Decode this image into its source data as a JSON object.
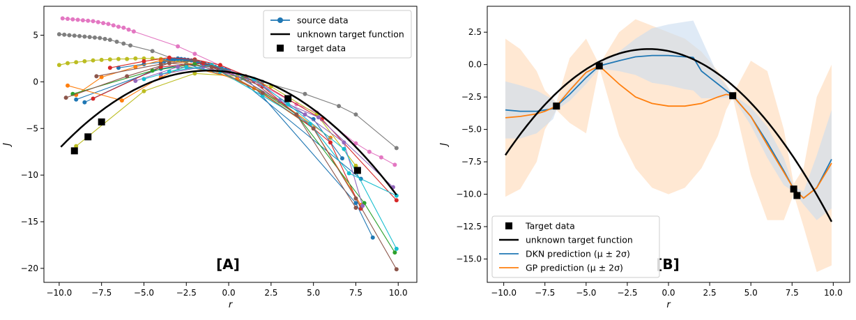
{
  "colors": {
    "blue": "#1f77b4",
    "orange": "#ff7f0e",
    "green": "#2ca02c",
    "red": "#d62728",
    "purple": "#9467bd",
    "brown": "#8c564b",
    "pink": "#e377c2",
    "gray": "#7f7f7f",
    "olive": "#bcbd22",
    "cyan": "#17becf",
    "black": "#000000",
    "band_blue": "#c9dcf0",
    "band_orange": "#ffe0c4"
  },
  "chart_data": [
    {
      "type": "line",
      "panel_label": "[A]",
      "xlabel": "r",
      "ylabel": "J",
      "xlim": [
        -10.9,
        11.1
      ],
      "ylim": [
        -21.5,
        8.1
      ],
      "xticks": [
        -10.0,
        -7.5,
        -5.0,
        -2.5,
        0.0,
        2.5,
        5.0,
        7.5,
        10.0
      ],
      "xtick_labels": [
        "−10.0",
        "−7.5",
        "−5.0",
        "−2.5",
        "0.0",
        "2.5",
        "5.0",
        "7.5",
        "10.0"
      ],
      "yticks": [
        5,
        0,
        -5,
        -10,
        -15,
        -20
      ],
      "ytick_labels": [
        "5",
        "0",
        "−5",
        "−10",
        "−15",
        "−20"
      ],
      "grid": false,
      "legend": {
        "placement": "upper-right",
        "entries": [
          {
            "label": "source data",
            "style": "line-marker",
            "color": "blue"
          },
          {
            "label": "unknown target function",
            "style": "line",
            "color": "black"
          },
          {
            "label": "target data",
            "style": "square",
            "color": "black"
          }
        ]
      },
      "target_function": {
        "r0": -1.2,
        "J0": 1.2,
        "a": 0.1081,
        "x_range": [
          -9.9,
          9.9
        ]
      },
      "target_points": {
        "x": [
          -9.1,
          -8.3,
          -7.5,
          3.5,
          7.6
        ],
        "y": [
          -7.4,
          -5.9,
          -4.3,
          -1.8,
          -9.5
        ]
      },
      "source_series": [
        {
          "color": "pink",
          "x": [
            -9.8,
            -9.5,
            -9.2,
            -8.9,
            -8.6,
            -8.3,
            -8.0,
            -7.7,
            -7.4,
            -7.1,
            -6.8,
            -6.5,
            -6.2,
            -5.9,
            -5.6,
            -3.0,
            -2.0,
            1.5,
            4.0,
            5.2,
            7.5,
            8.3,
            9.0,
            9.8
          ],
          "y": [
            6.8,
            6.75,
            6.7,
            6.65,
            6.6,
            6.55,
            6.5,
            6.4,
            6.3,
            6.2,
            6.05,
            5.9,
            5.8,
            5.6,
            5.4,
            3.8,
            3.0,
            0.1,
            -2.4,
            -3.3,
            -6.6,
            -7.5,
            -8.1,
            -8.9
          ]
        },
        {
          "color": "gray",
          "x": [
            -10.0,
            -9.7,
            -9.4,
            -9.1,
            -8.8,
            -8.5,
            -8.2,
            -7.9,
            -7.6,
            -7.3,
            -7.0,
            -6.6,
            -6.2,
            -5.8,
            -4.5,
            -3.0,
            -1.5,
            0.5,
            2.0,
            4.5,
            6.5,
            7.5,
            9.9
          ],
          "y": [
            5.1,
            5.05,
            5.0,
            4.95,
            4.9,
            4.85,
            4.8,
            4.75,
            4.7,
            4.6,
            4.5,
            4.3,
            4.1,
            3.9,
            3.3,
            2.3,
            1.6,
            0.6,
            0.0,
            -1.3,
            -2.6,
            -3.5,
            -7.1
          ]
        },
        {
          "color": "olive",
          "x": [
            -10.0,
            -9.5,
            -9.0,
            -8.5,
            -8.0,
            -7.5,
            -7.0,
            -6.5,
            -6.0,
            -5.5,
            -5.0,
            -4.5,
            -4.0,
            -3.5,
            -3.0,
            -2.5,
            -2.0,
            -1.5,
            -1.0,
            -0.5
          ],
          "y": [
            1.8,
            2.0,
            2.1,
            2.2,
            2.3,
            2.35,
            2.4,
            2.45,
            2.45,
            2.5,
            2.5,
            2.5,
            2.45,
            2.4,
            2.3,
            2.2,
            2.1,
            2.0,
            1.8,
            1.6
          ]
        },
        {
          "color": "olive",
          "x": [
            -9.0,
            -5.0,
            -2.0,
            0.5,
            2.5,
            5.2,
            7.5
          ],
          "y": [
            -6.9,
            -1.0,
            0.9,
            0.6,
            -0.5,
            -3.5,
            -9.0
          ]
        },
        {
          "color": "blue",
          "x": [
            -6.5,
            -5.0,
            -4.0,
            -3.8,
            -3.6,
            -3.4,
            -3.2,
            -3.0,
            -2.8,
            -2.6,
            -2.4,
            -2.2,
            -2.0,
            -1.8,
            -1.6,
            -1.4,
            -1.2,
            -1.0,
            -0.8,
            -0.6,
            -0.4,
            -0.2,
            0.0,
            7.8
          ],
          "y": [
            1.5,
            1.9,
            2.1,
            2.2,
            2.3,
            2.35,
            2.4,
            2.45,
            2.45,
            2.4,
            2.35,
            2.3,
            2.2,
            2.1,
            2.0,
            1.9,
            1.8,
            1.7,
            1.6,
            1.5,
            1.4,
            1.3,
            1.2,
            -10.4
          ]
        },
        {
          "color": "blue",
          "x": [
            -8.5,
            -3.0,
            -1.5,
            1.0,
            7.5,
            8.5
          ],
          "y": [
            -2.2,
            2.5,
            2.0,
            0.5,
            -13.0,
            -16.7
          ]
        },
        {
          "color": "blue",
          "x": [
            -9.0,
            -4.0,
            -2.5,
            0.5,
            5.0,
            6.7
          ],
          "y": [
            -1.9,
            1.4,
            1.9,
            0.3,
            -4.0,
            -8.2
          ]
        },
        {
          "color": "orange",
          "x": [
            -9.0,
            -7.5,
            -5.5,
            -4.0,
            -2.0,
            -1.0,
            1.5,
            5.0,
            7.8
          ],
          "y": [
            -1.4,
            0.5,
            1.6,
            2.3,
            1.9,
            1.3,
            -0.7,
            -5.0,
            -13.2
          ]
        },
        {
          "color": "orange",
          "x": [
            -9.5,
            -6.3,
            -4.0,
            -2.5,
            0.5,
            3.0,
            6.0
          ],
          "y": [
            -0.4,
            -2.0,
            0.5,
            1.7,
            0.3,
            -2.1,
            -6.0
          ]
        },
        {
          "color": "red",
          "x": [
            -7.0,
            -5.0,
            -3.5,
            -2.0,
            -0.5,
            1.5,
            5.5,
            9.9
          ],
          "y": [
            1.5,
            2.2,
            2.6,
            2.4,
            1.8,
            0.3,
            -4.0,
            -12.7
          ]
        },
        {
          "color": "red",
          "x": [
            -8.0,
            -4.0,
            -1.5,
            2.0,
            6.0,
            7.8
          ],
          "y": [
            -1.8,
            1.6,
            2.0,
            -0.5,
            -6.5,
            -13.6
          ]
        },
        {
          "color": "green",
          "x": [
            -9.2,
            -4.5,
            -2.0,
            0.8,
            4.0,
            8.0,
            9.8
          ],
          "y": [
            -1.3,
            1.2,
            1.9,
            0.4,
            -3.5,
            -13.0,
            -18.3
          ]
        },
        {
          "color": "purple",
          "x": [
            -5.5,
            -3.0,
            0.0,
            3.0,
            5.3,
            9.7
          ],
          "y": [
            0.1,
            1.6,
            1.1,
            -2.0,
            -3.8,
            -11.3
          ]
        },
        {
          "color": "purple",
          "x": [
            -4.0,
            -1.5,
            1.5,
            4.5,
            6.8,
            7.9
          ],
          "y": [
            0.8,
            1.6,
            0.1,
            -3.5,
            -6.5,
            -13.3
          ]
        },
        {
          "color": "cyan",
          "x": [
            -5.0,
            -2.5,
            -0.5,
            2.0,
            4.8,
            7.1,
            9.9
          ],
          "y": [
            0.3,
            1.6,
            1.1,
            -1.5,
            -4.5,
            -9.8,
            -12.2
          ]
        },
        {
          "color": "cyan",
          "x": [
            -3.5,
            -1.0,
            1.5,
            3.5,
            6.8,
            9.9
          ],
          "y": [
            1.1,
            1.8,
            0.3,
            -2.4,
            -7.2,
            -17.9
          ]
        },
        {
          "color": "brown",
          "x": [
            -9.6,
            -6.0,
            -3.5,
            -1.0,
            2.0,
            5.0,
            7.5,
            9.9
          ],
          "y": [
            -1.7,
            0.6,
            2.0,
            1.6,
            -1.2,
            -5.0,
            -12.5,
            -20.1
          ]
        },
        {
          "color": "brown",
          "x": [
            -7.8,
            -4.0,
            -2.0,
            1.0,
            4.0,
            7.5
          ],
          "y": [
            0.6,
            1.9,
            2.3,
            0.6,
            -3.5,
            -13.5
          ]
        }
      ]
    },
    {
      "type": "line",
      "panel_label": "[B]",
      "xlabel": "r",
      "ylabel": "J",
      "xlim": [
        -11.0,
        11.0
      ],
      "ylim": [
        -16.8,
        4.5
      ],
      "xticks": [
        -10.0,
        -7.5,
        -5.0,
        -2.5,
        0.0,
        2.5,
        5.0,
        7.5,
        10.0
      ],
      "xtick_labels": [
        "−10.0",
        "−7.5",
        "−5.0",
        "−2.5",
        "0.0",
        "2.5",
        "5.0",
        "7.5",
        "10.0"
      ],
      "yticks": [
        2.5,
        0.0,
        -2.5,
        -5.0,
        -7.5,
        -10.0,
        -12.5,
        -15.0
      ],
      "ytick_labels": [
        "2.5",
        "0.0",
        "−2.5",
        "−5.0",
        "−7.5",
        "−10.0",
        "−12.5",
        "−15.0"
      ],
      "grid": false,
      "legend": {
        "placement": "lower-left",
        "entries": [
          {
            "label": "Target data",
            "style": "square",
            "color": "black"
          },
          {
            "label": "unknown target function",
            "style": "line",
            "color": "black"
          },
          {
            "label": "DKN prediction (μ ± 2σ)",
            "style": "line",
            "color": "blue"
          },
          {
            "label": "GP prediction (μ ± 2σ)",
            "style": "line",
            "color": "orange"
          }
        ]
      },
      "target_function": {
        "r0": -1.2,
        "J0": 1.2,
        "a": 0.1081,
        "x_range": [
          -9.9,
          9.9
        ]
      },
      "target_points": {
        "x": [
          -6.8,
          -4.2,
          3.9,
          7.6,
          7.8
        ],
        "y": [
          -3.2,
          -0.1,
          -2.4,
          -9.6,
          -10.1
        ]
      },
      "dkn_series": {
        "x": [
          -9.9,
          -9.0,
          -8.0,
          -7.0,
          -6.8,
          -6.0,
          -5.0,
          -4.2,
          -3.0,
          -2.0,
          -1.0,
          0.0,
          1.0,
          1.5,
          2.0,
          3.0,
          3.9,
          5.0,
          6.0,
          7.0,
          7.6,
          8.2,
          9.0,
          9.9
        ],
        "mean": [
          -3.5,
          -3.6,
          -3.6,
          -3.4,
          -3.2,
          -2.3,
          -1.0,
          -0.1,
          0.3,
          0.6,
          0.7,
          0.7,
          0.6,
          0.55,
          -0.5,
          -1.5,
          -2.4,
          -4.0,
          -6.0,
          -8.2,
          -9.6,
          -10.3,
          -9.5,
          -7.3
        ],
        "upper": [
          -1.3,
          -1.6,
          -2.0,
          -2.7,
          -3.0,
          -1.8,
          -0.5,
          0.1,
          1.0,
          2.0,
          2.8,
          3.1,
          3.3,
          3.4,
          2.0,
          -0.8,
          -2.3,
          -3.3,
          -4.8,
          -7.2,
          -9.4,
          -9.8,
          -7.0,
          -3.5
        ],
        "lower": [
          -5.7,
          -5.7,
          -5.3,
          -4.2,
          -3.5,
          -2.8,
          -1.5,
          -0.3,
          -0.5,
          -0.8,
          -1.4,
          -1.6,
          -1.9,
          -2.0,
          -2.6,
          -2.6,
          -2.5,
          -4.7,
          -7.2,
          -9.3,
          -9.8,
          -10.8,
          -12.0,
          -11.1
        ]
      },
      "gp_series": {
        "x": [
          -9.9,
          -9.0,
          -8.0,
          -7.5,
          -6.8,
          -6.0,
          -5.0,
          -4.2,
          -3.0,
          -2.0,
          -1.0,
          0.0,
          1.0,
          2.0,
          3.0,
          3.5,
          3.9,
          5.0,
          6.0,
          7.0,
          7.6,
          8.2,
          9.0,
          9.9
        ],
        "mean": [
          -4.1,
          -4.0,
          -3.8,
          -3.6,
          -3.2,
          -2.0,
          -0.6,
          -0.1,
          -1.5,
          -2.5,
          -3.0,
          -3.2,
          -3.2,
          -3.0,
          -2.5,
          -2.3,
          -2.4,
          -4.0,
          -6.2,
          -8.3,
          -9.6,
          -10.3,
          -9.5,
          -7.6
        ],
        "upper": [
          2.0,
          1.2,
          -0.5,
          -2.0,
          -2.9,
          0.5,
          2.0,
          0.0,
          2.5,
          3.5,
          3.0,
          2.5,
          2.0,
          1.0,
          -0.5,
          -1.5,
          -2.3,
          0.3,
          -0.5,
          -5.0,
          -9.2,
          -8.0,
          -2.5,
          0.0
        ],
        "lower": [
          -10.2,
          -9.6,
          -7.5,
          -5.0,
          -3.5,
          -4.5,
          -5.3,
          -0.2,
          -5.5,
          -8.0,
          -9.5,
          -10.0,
          -9.5,
          -8.0,
          -5.5,
          -3.5,
          -2.5,
          -8.5,
          -12.0,
          -12.0,
          -10.0,
          -12.5,
          -16.0,
          -15.5
        ]
      }
    }
  ]
}
